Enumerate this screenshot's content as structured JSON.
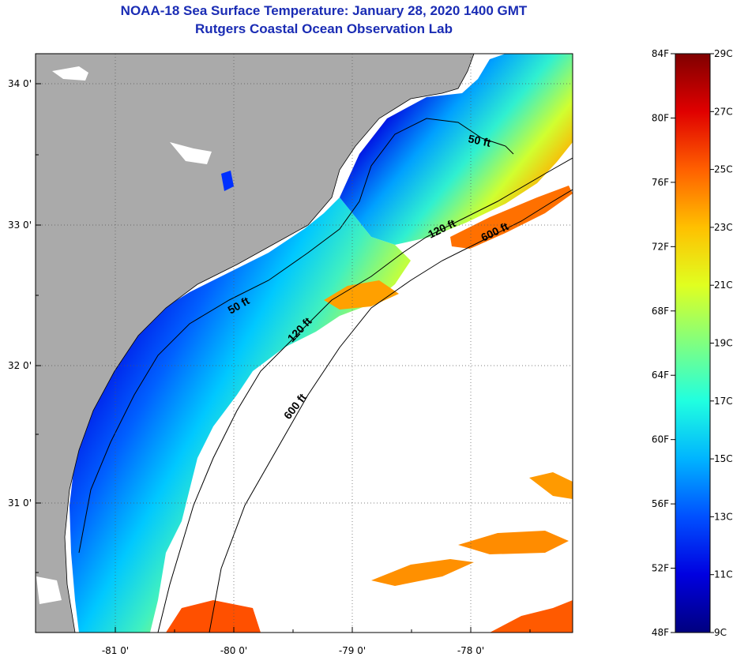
{
  "header": {
    "title_line1": "NOAA-18 Sea Surface Temperature:  January 28, 2020 1400 GMT",
    "title_line2": "Rutgers Coastal Ocean Observation Lab"
  },
  "map": {
    "lat_ticks": [
      "34 0'",
      "33 0'",
      "32 0'",
      "31 0'"
    ],
    "lon_ticks": [
      "-81 0'",
      "-80 0'",
      "-79 0'",
      "-78 0'"
    ],
    "contour_labels": [
      "50 ft",
      "120 ft",
      "600 ft",
      "50 ft",
      "120 ft",
      "600 ft"
    ],
    "colors": {
      "land": "#aaaaaa",
      "cloud": "#ffffff",
      "coast": "#000000"
    }
  },
  "colorbar": {
    "fahrenheit": [
      "84F",
      "80F",
      "76F",
      "72F",
      "68F",
      "64F",
      "60F",
      "56F",
      "52F",
      "48F"
    ],
    "celsius": [
      "29C",
      "27C",
      "25C",
      "23C",
      "21C",
      "19C",
      "17C",
      "15C",
      "13C",
      "11C",
      "9C"
    ],
    "colors": [
      "#00007f",
      "#0000e0",
      "#0050ff",
      "#00b4ff",
      "#20ffe0",
      "#80ff80",
      "#e0ff20",
      "#ffc000",
      "#ff6000",
      "#e00000",
      "#800000"
    ]
  }
}
